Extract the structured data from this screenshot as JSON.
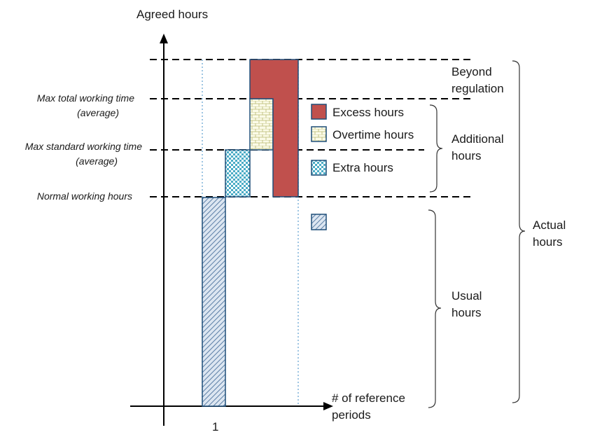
{
  "axes": {
    "y_label": "Agreed hours",
    "x_label_line1": "# of reference",
    "x_label_line2": "periods",
    "x_tick": "1"
  },
  "levels": {
    "max_total_line1": "Max total working time",
    "max_total_line2": "(average)",
    "max_standard_line1": "Max standard working time",
    "max_standard_line2": "(average)",
    "normal": "Normal working hours"
  },
  "legend": {
    "excess": "Excess hours",
    "overtime": "Overtime hours",
    "extra": "Extra hours",
    "usual": ""
  },
  "brackets": {
    "beyond_line1": "Beyond",
    "beyond_line2": "regulation",
    "additional_line1": "Additional",
    "additional_line2": "hours",
    "usual_line1": "Usual",
    "usual_line2": "hours",
    "actual_line1": "Actual",
    "actual_line2": "hours"
  },
  "colors": {
    "excess": "#c0504d",
    "overtime": "#f2f2d8",
    "extra": "#4bacc6",
    "usual": "#b8cce4",
    "outline": "#1f4e79",
    "guide": "#7fb2d9"
  }
}
